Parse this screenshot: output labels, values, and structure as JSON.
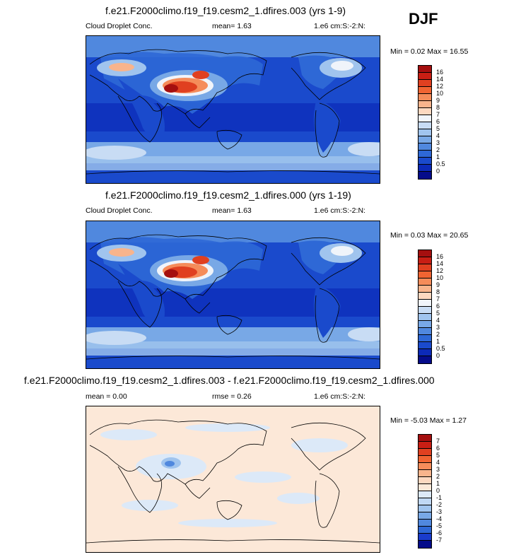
{
  "season": "DJF",
  "panels": [
    {
      "title": "f.e21.F2000climo.f19_f19.cesm2_1.dfires.003 (yrs 1-9)",
      "variable": "Cloud Droplet Conc.",
      "stat": "mean=   1.63",
      "units": "1.e6 cm:S:-2:N:",
      "minmax": "Min =  0.02 Max =  16.55",
      "levels": [
        "16",
        "14",
        "12",
        "10",
        "9",
        "8",
        "7",
        "6",
        "5",
        "4",
        "3",
        "2",
        "1",
        "0.5",
        "0"
      ],
      "colors": [
        "#a50f0f",
        "#c81e14",
        "#e04020",
        "#f06432",
        "#f58c5a",
        "#f8b48c",
        "#fcd8c0",
        "#f0f4fa",
        "#c8dcf4",
        "#a0c4ee",
        "#78a8e6",
        "#5088de",
        "#2e68d6",
        "#1a4acc",
        "#0c2ab8",
        "#050c8a"
      ]
    },
    {
      "title": "f.e21.F2000climo.f19_f19.cesm2_1.dfires.000 (yrs 1-19)",
      "variable": "Cloud Droplet Conc.",
      "stat": "mean=   1.63",
      "units": "1.e6 cm:S:-2:N:",
      "minmax": "Min =  0.03 Max =  20.65",
      "levels": [
        "16",
        "14",
        "12",
        "10",
        "9",
        "8",
        "7",
        "6",
        "5",
        "4",
        "3",
        "2",
        "1",
        "0.5",
        "0"
      ],
      "colors": [
        "#a50f0f",
        "#c81e14",
        "#e04020",
        "#f06432",
        "#f58c5a",
        "#f8b48c",
        "#fcd8c0",
        "#f0f4fa",
        "#c8dcf4",
        "#a0c4ee",
        "#78a8e6",
        "#5088de",
        "#2e68d6",
        "#1a4acc",
        "#0c2ab8",
        "#050c8a"
      ]
    },
    {
      "title": "f.e21.F2000climo.f19_f19.cesm2_1.dfires.003 - f.e21.F2000climo.f19_f19.cesm2_1.dfires.000",
      "mean": "mean =   0.00",
      "rmse": "rmse =   0.26",
      "units": "1.e6 cm:S:-2:N:",
      "minmax": "Min =  -5.03 Max =   1.27",
      "levels": [
        "7",
        "6",
        "5",
        "4",
        "3",
        "2",
        "1",
        "0",
        "-1",
        "-2",
        "-3",
        "-4",
        "-5",
        "-6",
        "-7"
      ],
      "colors": [
        "#a50f0f",
        "#c81e14",
        "#e04020",
        "#f06432",
        "#f58c5a",
        "#f8b48c",
        "#fcd8c0",
        "#fce8d8",
        "#dce9f8",
        "#c0d8f4",
        "#a0c4ee",
        "#78a8e6",
        "#5088de",
        "#2e68d6",
        "#1a3ccc",
        "#050c8a"
      ]
    }
  ]
}
